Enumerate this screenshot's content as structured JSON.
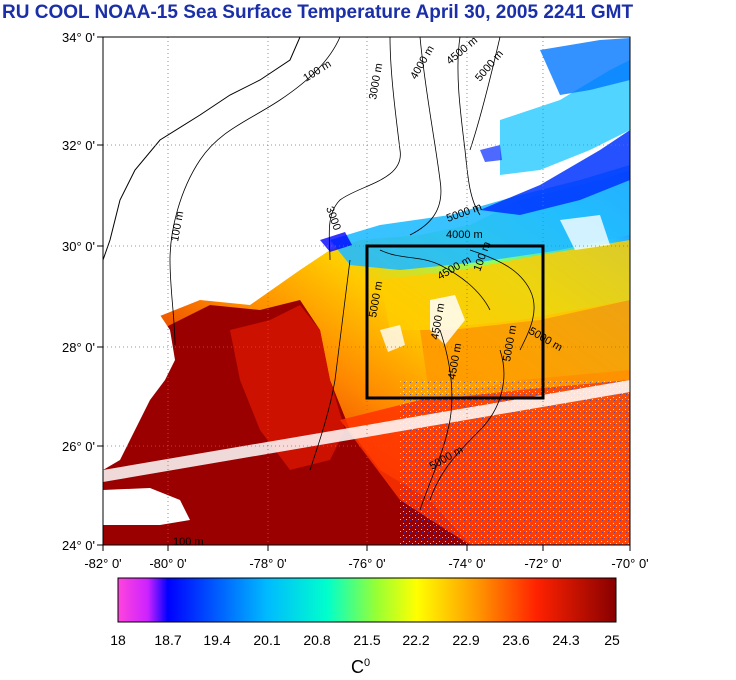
{
  "title": "RU COOL  NOAA-15 Sea Surface Temperature April 30, 2005 2241 GMT",
  "lat_labels": [
    "34° 0'",
    "32° 0'",
    "30° 0'",
    "28° 0'",
    "26° 0'",
    "24° 0'"
  ],
  "lon_labels": [
    "-82° 0'",
    "-80° 0'",
    "-78° 0'",
    "-76° 0'",
    "-74° 0'",
    "-72° 0'",
    "-70° 0'"
  ],
  "contour_labels": {
    "c1": "100 m",
    "c2": "3000 m",
    "c3": "4000 m",
    "c4": "4500 m",
    "c5": "5000 m",
    "c6": "100 m",
    "c7": "3000",
    "c8": "4000 m",
    "c9": "5000 m",
    "c10": "4500 m",
    "c11": "5000 m",
    "c12": "4500 m",
    "c13": "5000 m",
    "c14": "100 m",
    "c15": "5000 m",
    "c16": "100 m",
    "c17": "4500 m",
    "c18": "5000 m"
  },
  "colorbar": {
    "ticks": [
      "18",
      "18.7",
      "19.4",
      "20.1",
      "20.8",
      "21.5",
      "22.2",
      "22.9",
      "23.6",
      "24.3",
      "25"
    ],
    "min": 18,
    "max": 25,
    "colors": [
      "#ff33dd",
      "#0000ff",
      "#00aaff",
      "#00ffee",
      "#aaff33",
      "#ffff00",
      "#ff9900",
      "#ff2200",
      "#990000"
    ]
  },
  "unit": {
    "base": "C",
    "sup": "0"
  },
  "study_box": {
    "lat_north": "30° 0'",
    "lat_south": "27° 0'",
    "lon_west": "-76° 0'",
    "lon_east": "-72° 0'"
  }
}
